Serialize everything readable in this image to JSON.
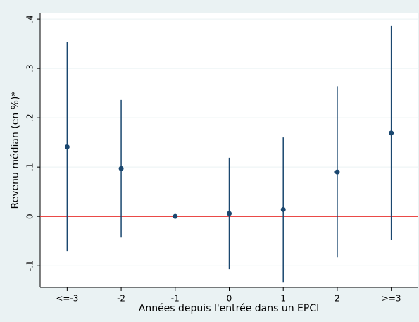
{
  "chart_data": {
    "type": "coefplot",
    "y_label": "Revenu médian (en %)*",
    "x_label": "Années depuis l'entrée dans un EPCI",
    "categories": [
      "<=-3",
      "-2",
      "-1",
      "0",
      "1",
      "2",
      ">=3"
    ],
    "values": [
      0.141,
      0.097,
      0,
      0.006,
      0.014,
      0.09,
      0.169
    ],
    "lower": [
      -0.07,
      -0.043,
      null,
      -0.107,
      -0.133,
      -0.083,
      -0.047
    ],
    "upper": [
      0.353,
      0.236,
      null,
      0.119,
      0.16,
      0.264,
      0.386
    ],
    "color": "#1a476f",
    "reference_line": 0,
    "reference_color": "#e8312f",
    "ylim": [
      -0.144,
      0.413
    ],
    "yticks": [
      {
        "value": -0.1,
        "label": "-.1"
      },
      0,
      {
        "value": 0.1,
        "label": ".1"
      },
      {
        "value": 0.2,
        "label": ".2"
      },
      {
        "value": 0.3,
        "label": ".3"
      },
      {
        "value": 0.4,
        "label": ".4"
      }
    ],
    "grid": true
  }
}
